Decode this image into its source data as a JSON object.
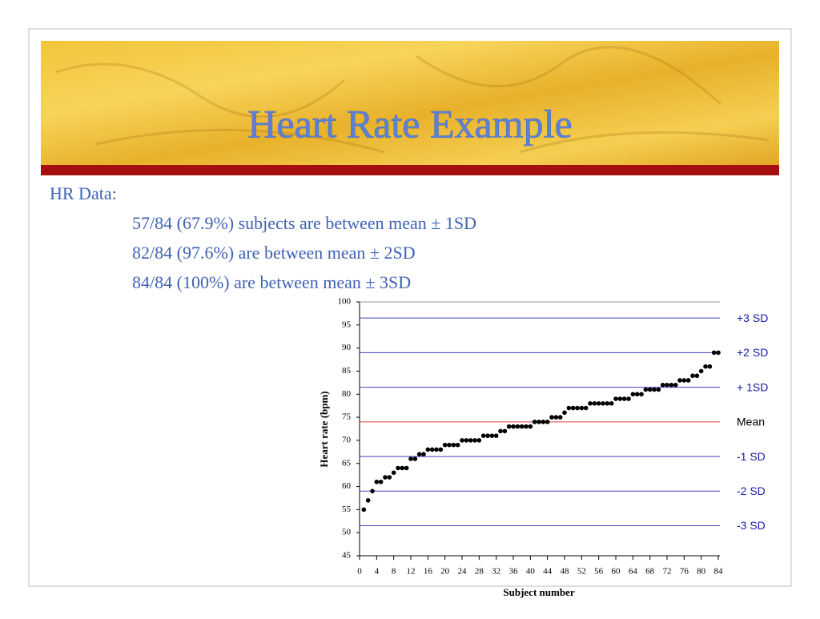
{
  "slide": {
    "title": "Heart Rate Example",
    "heading": "HR Data:",
    "bullets": [
      "57/84 (67.9%) subjects are between mean ± 1SD",
      "82/84 (97.6%) are between mean ± 2SD",
      "84/84 (100%) are between mean ± 3SD"
    ]
  },
  "chart_data": {
    "type": "scatter",
    "x_label": "Subject number",
    "y_label": "Heart rate (bpm)",
    "x": [
      1,
      2,
      3,
      4,
      5,
      6,
      7,
      8,
      9,
      10,
      11,
      12,
      13,
      14,
      15,
      16,
      17,
      18,
      19,
      20,
      21,
      22,
      23,
      24,
      25,
      26,
      27,
      28,
      29,
      30,
      31,
      32,
      33,
      34,
      35,
      36,
      37,
      38,
      39,
      40,
      41,
      42,
      43,
      44,
      45,
      46,
      47,
      48,
      49,
      50,
      51,
      52,
      53,
      54,
      55,
      56,
      57,
      58,
      59,
      60,
      61,
      62,
      63,
      64,
      65,
      66,
      67,
      68,
      69,
      70,
      71,
      72,
      73,
      74,
      75,
      76,
      77,
      78,
      79,
      80,
      81,
      82,
      83,
      84
    ],
    "values": [
      55,
      57,
      59,
      61,
      61,
      62,
      62,
      63,
      64,
      64,
      64,
      66,
      66,
      67,
      67,
      68,
      68,
      68,
      68,
      69,
      69,
      69,
      69,
      70,
      70,
      70,
      70,
      70,
      71,
      71,
      71,
      71,
      72,
      72,
      73,
      73,
      73,
      73,
      73,
      73,
      74,
      74,
      74,
      74,
      75,
      75,
      75,
      76,
      77,
      77,
      77,
      77,
      77,
      78,
      78,
      78,
      78,
      78,
      78,
      79,
      79,
      79,
      79,
      80,
      80,
      80,
      81,
      81,
      81,
      81,
      82,
      82,
      82,
      82,
      83,
      83,
      83,
      84,
      84,
      85,
      86,
      86,
      89,
      89
    ],
    "color": "#000000",
    "xlim": [
      0,
      84
    ],
    "xticks": [
      0,
      4,
      8,
      12,
      16,
      20,
      24,
      28,
      32,
      36,
      40,
      44,
      48,
      52,
      56,
      60,
      64,
      68,
      72,
      76,
      80,
      84
    ],
    "ylim": [
      45,
      100
    ],
    "yticks": [
      45,
      50,
      55,
      60,
      65,
      70,
      75,
      80,
      85,
      90,
      95,
      100
    ],
    "reference_lines": [
      {
        "label": "+3 SD",
        "value": 96.5,
        "color": "#4040c0",
        "label_color": "#1a1aa6"
      },
      {
        "label": "+2 SD",
        "value": 89,
        "color": "#4040c0",
        "label_color": "#1a1aa6"
      },
      {
        "label": "+ 1SD",
        "value": 81.5,
        "color": "#4040c0",
        "label_color": "#1a1aa6"
      },
      {
        "label": "Mean",
        "value": 74,
        "color": "#e04040",
        "label_color": "#000000"
      },
      {
        "label": "-1 SD",
        "value": 66.5,
        "color": "#4040c0",
        "label_color": "#1a1aa6"
      },
      {
        "label": "-2 SD",
        "value": 59,
        "color": "#4040c0",
        "label_color": "#1a1aa6"
      },
      {
        "label": "-3 SD",
        "value": 51.5,
        "color": "#4040c0",
        "label_color": "#1a1aa6"
      }
    ]
  }
}
